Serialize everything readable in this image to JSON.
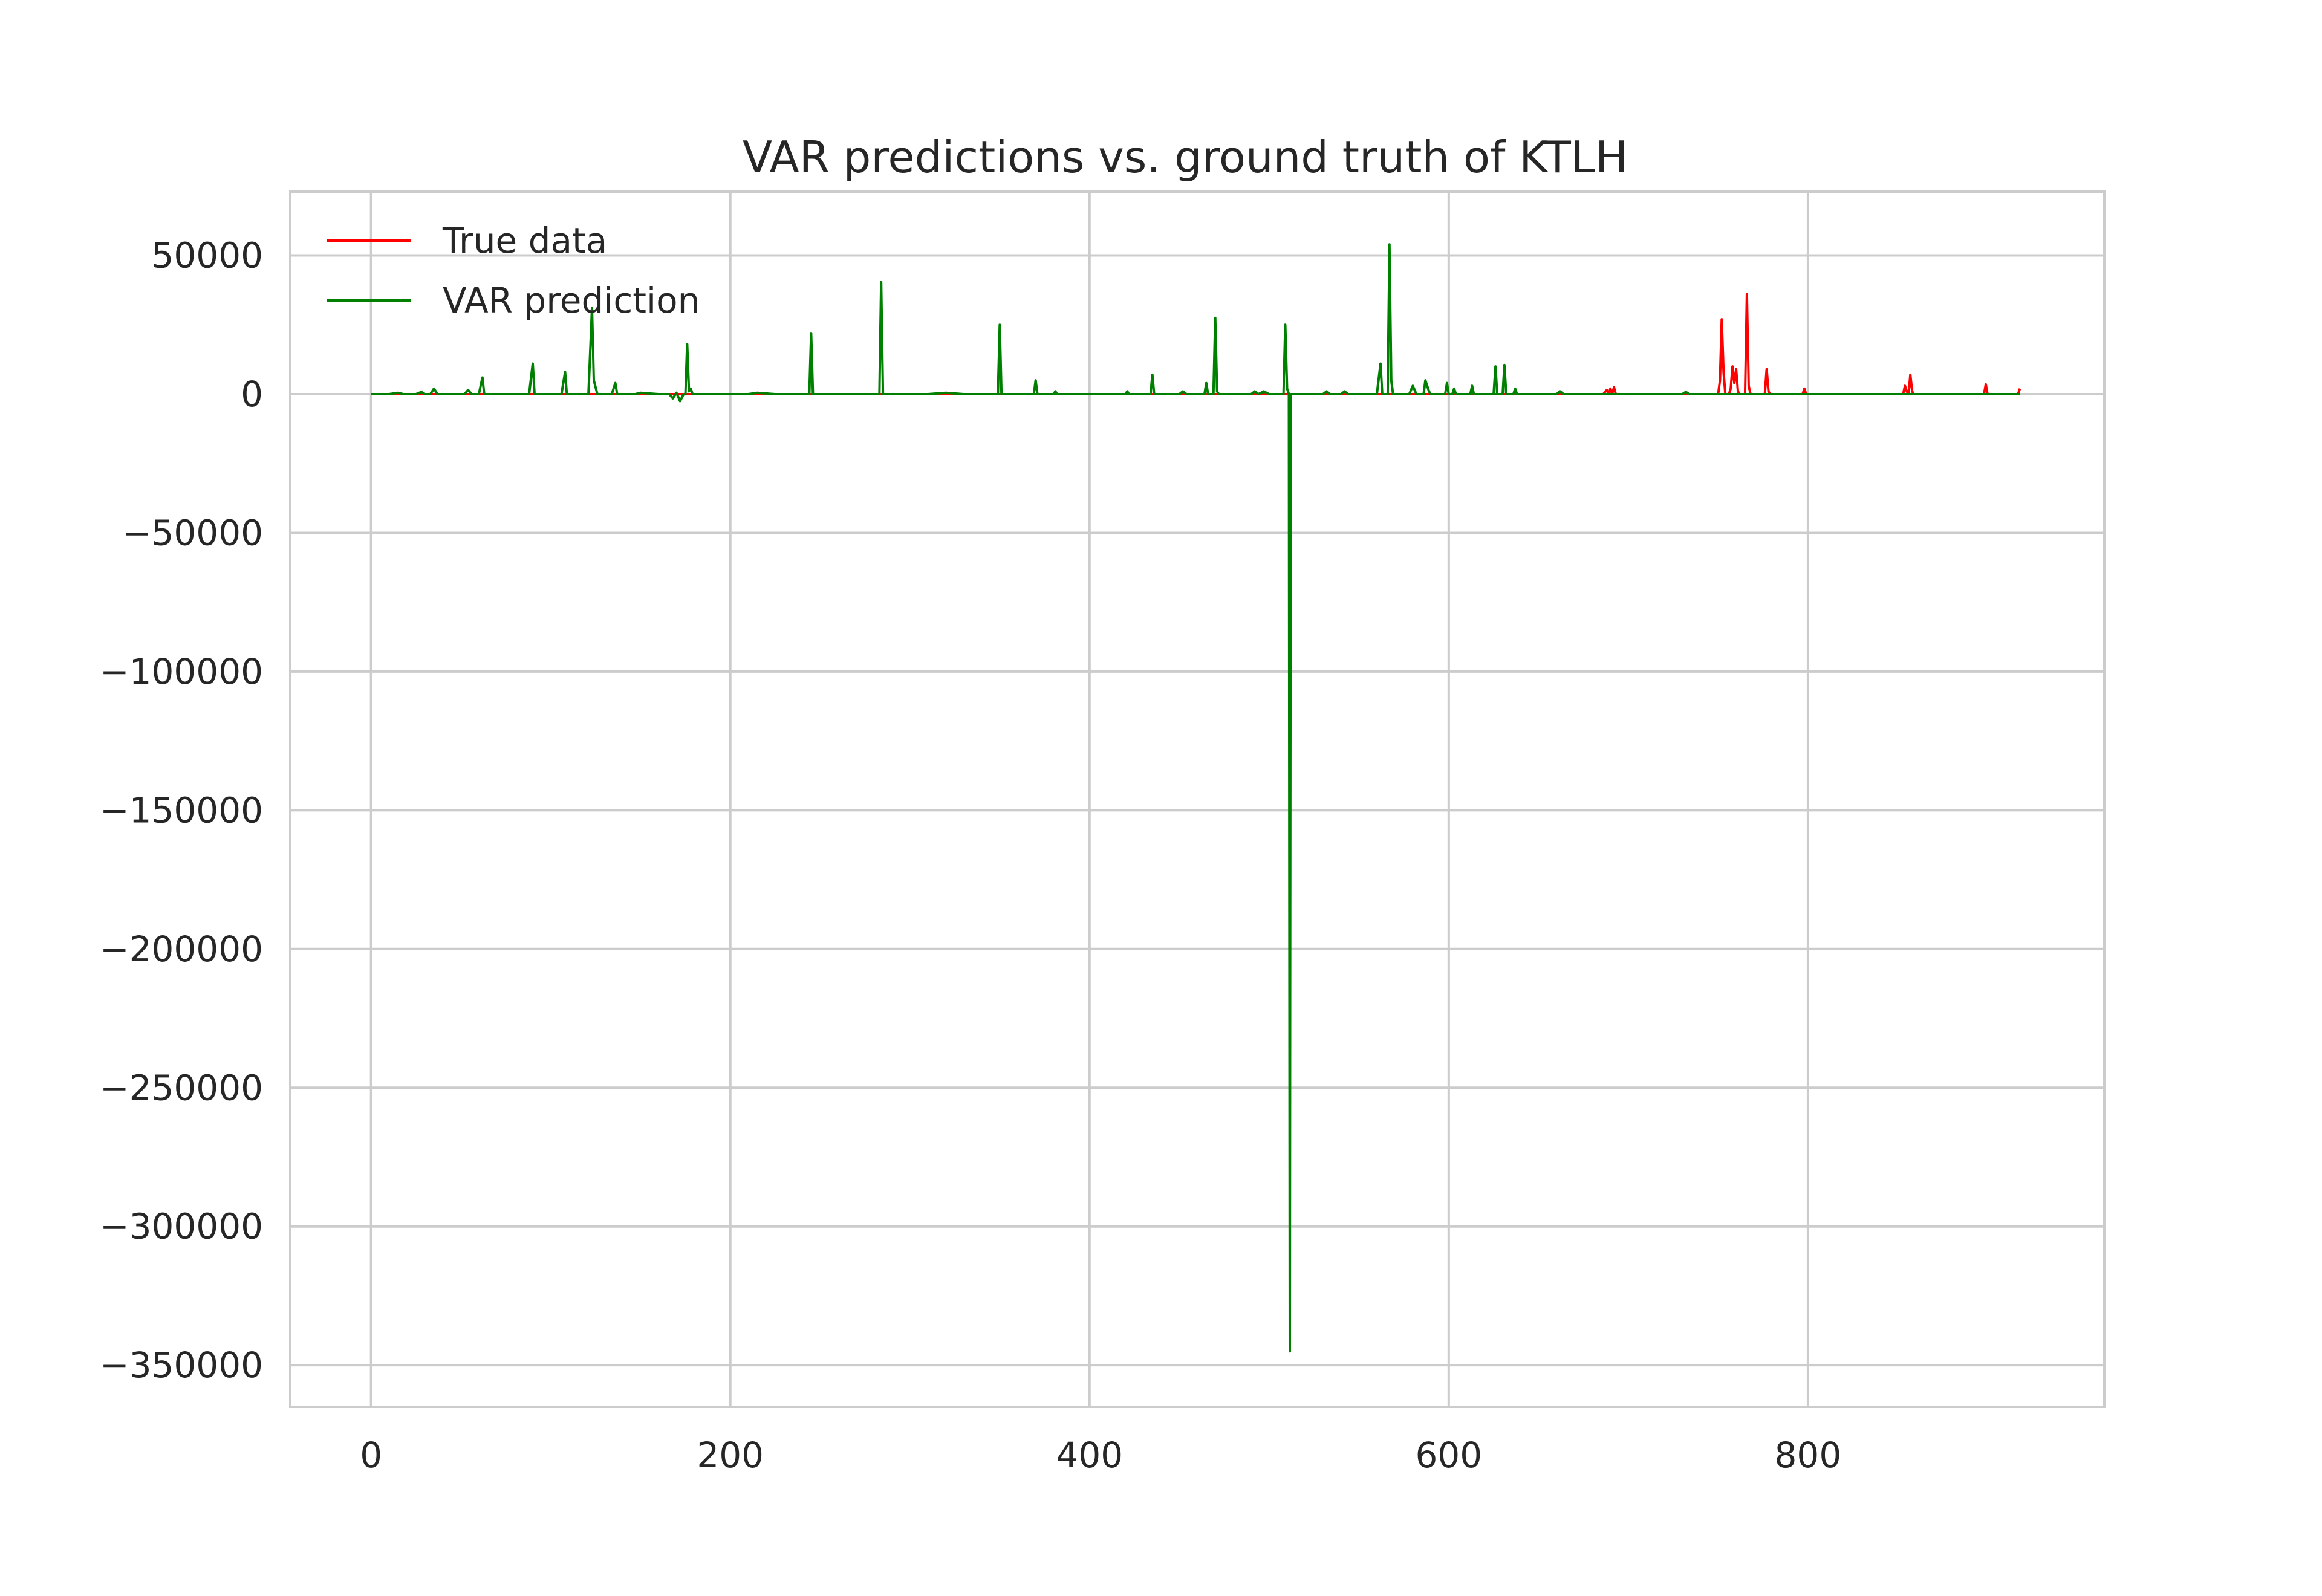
{
  "chart_data": {
    "type": "line",
    "title": "VAR predictions vs. ground truth of KTLH",
    "xlabel": "",
    "ylabel": "",
    "xlim": [
      -45,
      965
    ],
    "ylim": [
      -365000,
      73000
    ],
    "grid": true,
    "legend_position": "top-left",
    "x_ticks": [
      {
        "value": 0,
        "label": "0"
      },
      {
        "value": 200,
        "label": "200"
      },
      {
        "value": 400,
        "label": "400"
      },
      {
        "value": 600,
        "label": "600"
      },
      {
        "value": 800,
        "label": "800"
      }
    ],
    "y_ticks": [
      {
        "value": 50000,
        "label": "50000"
      },
      {
        "value": 0,
        "label": "0"
      },
      {
        "value": -50000,
        "label": "−50000"
      },
      {
        "value": -100000,
        "label": "−100000"
      },
      {
        "value": -150000,
        "label": "−150000"
      },
      {
        "value": -200000,
        "label": "−200000"
      },
      {
        "value": -250000,
        "label": "−250000"
      },
      {
        "value": -300000,
        "label": "−300000"
      },
      {
        "value": -350000,
        "label": "−350000"
      }
    ],
    "series": [
      {
        "name": "True data",
        "color": "#ff0000",
        "points": [
          [
            0,
            0
          ],
          [
            686,
            0
          ],
          [
            688,
            1500
          ],
          [
            689,
            0
          ],
          [
            690,
            2000
          ],
          [
            691,
            0
          ],
          [
            692,
            2500
          ],
          [
            693,
            0
          ],
          [
            750,
            0
          ],
          [
            751,
            5000
          ],
          [
            752,
            27000
          ],
          [
            753,
            8000
          ],
          [
            754,
            0
          ],
          [
            756,
            0
          ],
          [
            757,
            2000
          ],
          [
            758,
            10000
          ],
          [
            759,
            4000
          ],
          [
            760,
            9000
          ],
          [
            761,
            1000
          ],
          [
            762,
            0
          ],
          [
            765,
            0
          ],
          [
            766,
            36000
          ],
          [
            767,
            3000
          ],
          [
            768,
            0
          ],
          [
            776,
            0
          ],
          [
            777,
            9000
          ],
          [
            778,
            1000
          ],
          [
            779,
            0
          ],
          [
            797,
            0
          ],
          [
            798,
            2000
          ],
          [
            799,
            0
          ],
          [
            853,
            0
          ],
          [
            854,
            3000
          ],
          [
            855,
            1000
          ],
          [
            856,
            0
          ],
          [
            857,
            7000
          ],
          [
            858,
            1000
          ],
          [
            859,
            0
          ],
          [
            898,
            0
          ],
          [
            899,
            3500
          ],
          [
            900,
            0
          ],
          [
            917,
            0
          ],
          [
            918,
            2000
          ]
        ]
      },
      {
        "name": "VAR prediction",
        "color": "#008000",
        "points": [
          [
            0,
            0
          ],
          [
            10,
            0
          ],
          [
            15,
            500
          ],
          [
            18,
            0
          ],
          [
            25,
            0
          ],
          [
            28,
            800
          ],
          [
            30,
            0
          ],
          [
            33,
            0
          ],
          [
            35,
            2000
          ],
          [
            37,
            0
          ],
          [
            52,
            0
          ],
          [
            54,
            1500
          ],
          [
            56,
            0
          ],
          [
            60,
            0
          ],
          [
            62,
            6000
          ],
          [
            63,
            0
          ],
          [
            88,
            0
          ],
          [
            90,
            11000
          ],
          [
            91,
            0
          ],
          [
            106,
            0
          ],
          [
            108,
            8000
          ],
          [
            109,
            0
          ],
          [
            121,
            0
          ],
          [
            123,
            31000
          ],
          [
            124,
            5000
          ],
          [
            126,
            0
          ],
          [
            134,
            0
          ],
          [
            136,
            4000
          ],
          [
            137,
            0
          ],
          [
            147,
            0
          ],
          [
            150,
            500
          ],
          [
            160,
            0
          ],
          [
            166,
            0
          ],
          [
            168,
            -1500
          ],
          [
            170,
            500
          ],
          [
            172,
            -2500
          ],
          [
            174,
            0
          ],
          [
            175,
            0
          ],
          [
            176,
            18000
          ],
          [
            177,
            1000
          ],
          [
            178,
            2000
          ],
          [
            179,
            0
          ],
          [
            210,
            0
          ],
          [
            215,
            500
          ],
          [
            225,
            0
          ],
          [
            244,
            0
          ],
          [
            245,
            22000
          ],
          [
            246,
            0
          ],
          [
            283,
            0
          ],
          [
            284,
            40500
          ],
          [
            285,
            0
          ],
          [
            310,
            0
          ],
          [
            320,
            500
          ],
          [
            330,
            0
          ],
          [
            349,
            0
          ],
          [
            350,
            25000
          ],
          [
            351,
            0
          ],
          [
            369,
            0
          ],
          [
            370,
            5000
          ],
          [
            371,
            0
          ],
          [
            380,
            0
          ],
          [
            381,
            1000
          ],
          [
            382,
            0
          ],
          [
            420,
            0
          ],
          [
            421,
            1000
          ],
          [
            422,
            0
          ],
          [
            434,
            0
          ],
          [
            435,
            7000
          ],
          [
            436,
            0
          ],
          [
            450,
            0
          ],
          [
            452,
            1000
          ],
          [
            454,
            0
          ],
          [
            464,
            0
          ],
          [
            465,
            4000
          ],
          [
            466,
            0
          ],
          [
            469,
            0
          ],
          [
            470,
            27500
          ],
          [
            471,
            1000
          ],
          [
            472,
            0
          ],
          [
            490,
            0
          ],
          [
            492,
            1000
          ],
          [
            494,
            0
          ],
          [
            497,
            1000
          ],
          [
            500,
            0
          ],
          [
            508,
            0
          ],
          [
            509,
            25000
          ],
          [
            510,
            2000
          ],
          [
            511,
            0
          ],
          [
            511.5,
            -345000
          ],
          [
            512,
            0
          ],
          [
            530,
            0
          ],
          [
            532,
            1000
          ],
          [
            534,
            0
          ],
          [
            540,
            0
          ],
          [
            542,
            1000
          ],
          [
            544,
            0
          ],
          [
            560,
            0
          ],
          [
            562,
            11000
          ],
          [
            563,
            0
          ],
          [
            566,
            0
          ],
          [
            567,
            54000
          ],
          [
            568,
            5000
          ],
          [
            569,
            0
          ],
          [
            578,
            0
          ],
          [
            580,
            3000
          ],
          [
            582,
            0
          ],
          [
            586,
            0
          ],
          [
            587,
            5000
          ],
          [
            589,
            1000
          ],
          [
            590,
            0
          ],
          [
            598,
            0
          ],
          [
            599,
            4000
          ],
          [
            600,
            0
          ],
          [
            602,
            0
          ],
          [
            603,
            2000
          ],
          [
            604,
            0
          ],
          [
            612,
            0
          ],
          [
            613,
            3000
          ],
          [
            614,
            0
          ],
          [
            625,
            0
          ],
          [
            626,
            10000
          ],
          [
            627,
            0
          ],
          [
            630,
            0
          ],
          [
            631,
            10500
          ],
          [
            632,
            0
          ],
          [
            636,
            0
          ],
          [
            637,
            2000
          ],
          [
            638,
            0
          ],
          [
            660,
            0
          ],
          [
            662,
            1000
          ],
          [
            664,
            0
          ],
          [
            700,
            0
          ],
          [
            730,
            0
          ],
          [
            732,
            800
          ],
          [
            734,
            0
          ],
          [
            770,
            0
          ],
          [
            800,
            0
          ],
          [
            850,
            0
          ],
          [
            900,
            0
          ],
          [
            918,
            0
          ]
        ]
      }
    ]
  }
}
